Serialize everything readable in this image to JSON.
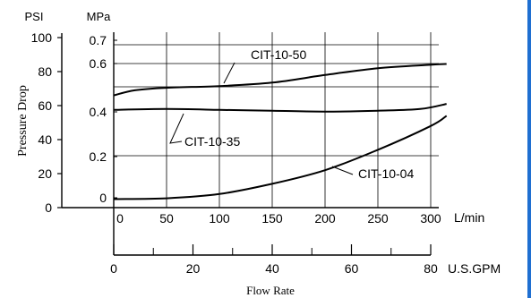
{
  "colors": {
    "accent_rule": "#1f6fd1",
    "ink": "#000000"
  },
  "chart_data": {
    "type": "line",
    "xlabel": "Flow Rate",
    "ylabel": "Pressure Drop",
    "axes": {
      "psi": {
        "label": "PSI",
        "ticks": [
          0,
          20,
          40,
          60,
          80,
          100
        ],
        "range": [
          0,
          100
        ]
      },
      "mpa": {
        "label": "MPa",
        "ticks": [
          "0",
          "0.2",
          "0.4",
          "0.6",
          "0.7"
        ]
      },
      "lmin": {
        "unit": "L/min",
        "ticks": [
          0,
          50,
          100,
          150,
          200,
          250,
          300
        ],
        "range": [
          0,
          300
        ]
      },
      "gpm": {
        "unit": "U.S.GPM",
        "ticks": [
          0,
          20,
          40,
          60,
          80
        ],
        "range": [
          0,
          80
        ]
      }
    },
    "grid": true,
    "series": [
      {
        "name": "CIT-10-50",
        "x_lmin": [
          0,
          20,
          50,
          100,
          150,
          200,
          250,
          300,
          315
        ],
        "y_psi": [
          66,
          69,
          70.5,
          71.5,
          73.5,
          78,
          82,
          84,
          84.5
        ]
      },
      {
        "name": "CIT-10-35",
        "x_lmin": [
          0,
          50,
          100,
          150,
          200,
          250,
          290,
          315
        ],
        "y_psi": [
          57.5,
          58,
          57.5,
          57,
          56.5,
          57,
          58,
          61
        ]
      },
      {
        "name": "CIT-10-04",
        "x_lmin": [
          0,
          50,
          100,
          150,
          200,
          250,
          300,
          315
        ],
        "y_psi": [
          5,
          5.5,
          8,
          14,
          22,
          34,
          48,
          54
        ]
      }
    ]
  }
}
